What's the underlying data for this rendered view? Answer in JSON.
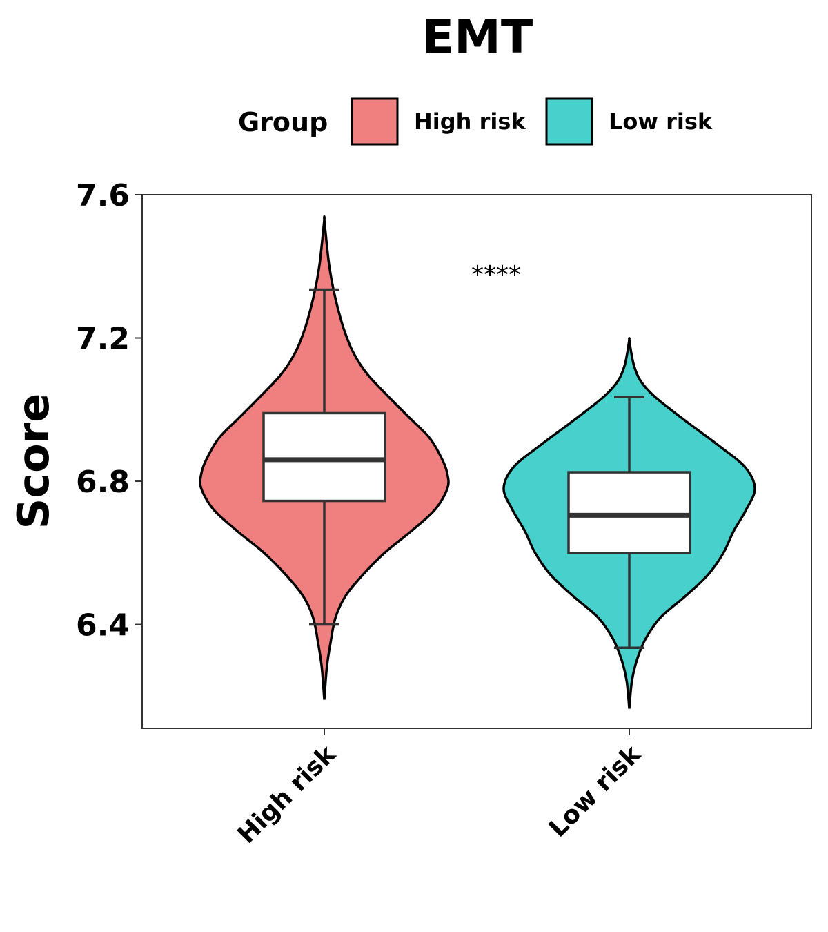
{
  "chart_data": {
    "type": "violin",
    "title": "EMT",
    "ylabel": "Score",
    "xlabel": "",
    "ylim": [
      6.11,
      7.6
    ],
    "yticks": [
      "6.4",
      "6.8",
      "7.2",
      "7.6"
    ],
    "categories": [
      "High risk",
      "Low risk"
    ],
    "legend": {
      "title": "Group",
      "placement": "top",
      "entries": [
        {
          "label": "High risk",
          "color": "#F08080"
        },
        {
          "label": "Low risk",
          "color": "#48D1CC"
        }
      ]
    },
    "annotation": "****",
    "groups": [
      {
        "name": "High risk",
        "color": "#F08080",
        "box": {
          "whisker_low": 6.4,
          "q1": 6.745,
          "median": 6.86,
          "q3": 6.99,
          "whisker_high": 7.335
        },
        "range": [
          6.19,
          7.53
        ],
        "density": [
          [
            6.19,
            0.0
          ],
          [
            6.28,
            0.02
          ],
          [
            6.35,
            0.05
          ],
          [
            6.42,
            0.09
          ],
          [
            6.48,
            0.17
          ],
          [
            6.54,
            0.31
          ],
          [
            6.6,
            0.48
          ],
          [
            6.66,
            0.69
          ],
          [
            6.72,
            0.88
          ],
          [
            6.78,
            0.98
          ],
          [
            6.82,
            0.98
          ],
          [
            6.86,
            0.94
          ],
          [
            6.92,
            0.84
          ],
          [
            6.98,
            0.67
          ],
          [
            7.04,
            0.5
          ],
          [
            7.1,
            0.34
          ],
          [
            7.16,
            0.23
          ],
          [
            7.22,
            0.16
          ],
          [
            7.28,
            0.11
          ],
          [
            7.34,
            0.07
          ],
          [
            7.4,
            0.04
          ],
          [
            7.46,
            0.02
          ],
          [
            7.53,
            0.0
          ]
        ]
      },
      {
        "name": "Low risk",
        "color": "#48D1CC",
        "box": {
          "whisker_low": 6.335,
          "q1": 6.6,
          "median": 6.705,
          "q3": 6.825,
          "whisker_high": 7.035
        },
        "range": [
          6.165,
          7.195
        ],
        "density": [
          [
            6.165,
            0.0
          ],
          [
            6.24,
            0.02
          ],
          [
            6.3,
            0.06
          ],
          [
            6.36,
            0.13
          ],
          [
            6.42,
            0.25
          ],
          [
            6.48,
            0.45
          ],
          [
            6.54,
            0.63
          ],
          [
            6.6,
            0.75
          ],
          [
            6.66,
            0.83
          ],
          [
            6.72,
            0.93
          ],
          [
            6.78,
            1.0
          ],
          [
            6.84,
            0.92
          ],
          [
            6.9,
            0.71
          ],
          [
            6.96,
            0.48
          ],
          [
            7.0,
            0.33
          ],
          [
            7.04,
            0.19
          ],
          [
            7.08,
            0.09
          ],
          [
            7.12,
            0.04
          ],
          [
            7.16,
            0.015
          ],
          [
            7.195,
            0.0
          ]
        ]
      }
    ]
  }
}
